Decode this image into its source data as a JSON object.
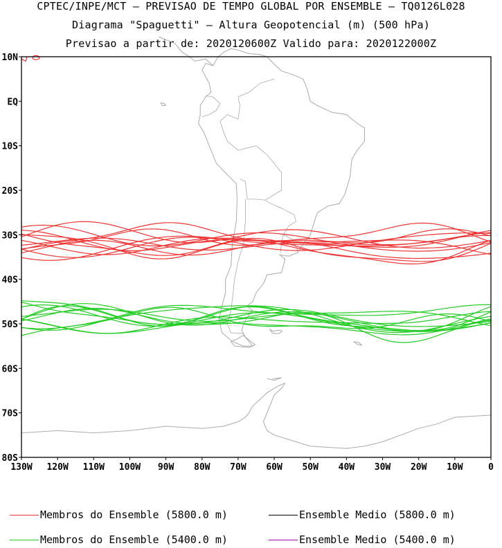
{
  "header": {
    "line1": "CPTEC/INPE/MCT – PREVISAO DE TEMPO GLOBAL POR ENSEMBLE – TQ0126L028",
    "line2": "Diagrama \"Spaguetti\" – Altura Geopotencial (m) (500 hPa)",
    "line3": "Previsao a partir de: 2020120600Z  Valido para: 2020122000Z"
  },
  "map": {
    "lon_range": [
      -130,
      0
    ],
    "lat_range": [
      -80,
      10
    ],
    "lat_ticks": [
      "10N",
      "EQ",
      "10S",
      "20S",
      "30S",
      "40S",
      "50S",
      "60S",
      "70S",
      "80S"
    ],
    "lon_ticks": [
      "130W",
      "120W",
      "110W",
      "100W",
      "90W",
      "80W",
      "70W",
      "60W",
      "50W",
      "40W",
      "30W",
      "20W",
      "10W",
      "0"
    ],
    "colors": {
      "red_members": "#ee3333",
      "green_members": "#22cc22",
      "coast": "#aaaaaa"
    }
  },
  "legend": [
    {
      "label": "Membros do Ensemble (5800.0 m)",
      "color": "#ee3333"
    },
    {
      "label": "Ensemble Medio (5800.0 m)",
      "color": "#000000"
    },
    {
      "label": "Membros do Ensemble (5400.0 m)",
      "color": "#22cc22"
    },
    {
      "label": "Ensemble Medio (5400.0 m)",
      "color": "#aa00aa"
    }
  ]
}
